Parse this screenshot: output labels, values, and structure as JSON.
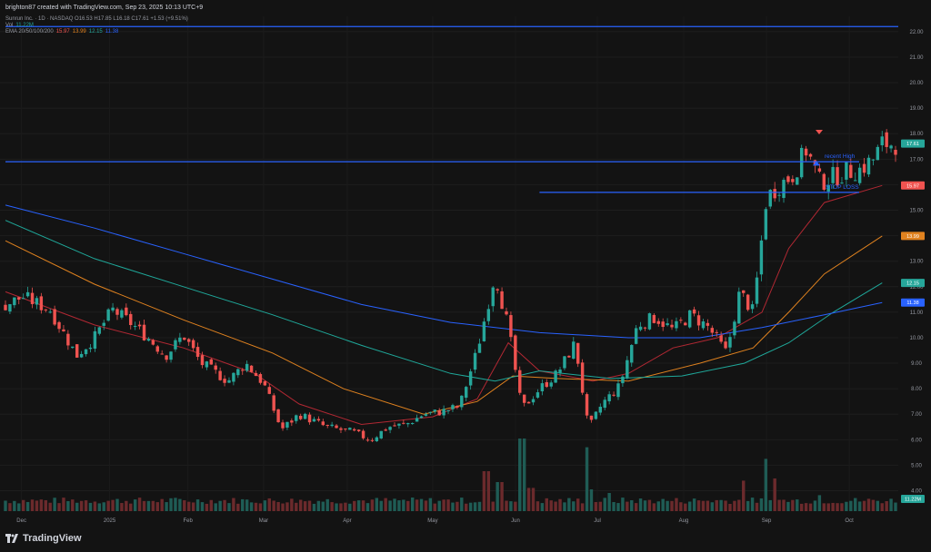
{
  "header": {
    "credit": "brighton87 created with TradingView.com, Sep 23, 2025 10:13 UTC+9"
  },
  "legend": {
    "symbol_line": "Sunrun Inc. · 1D · NASDAQ  O16.53  H17.85  L16.18  C17.61  +1.53 (+9.51%)",
    "vol_label": "Vol",
    "vol_value": "11.22M",
    "ema_label": "EMA 20/50/100/200",
    "ema_values": [
      "15.97",
      "13.99",
      "12.15",
      "11.38"
    ]
  },
  "annotations": {
    "recent_high": "recent High",
    "stop_loss": "STOP LOSS"
  },
  "footer": {
    "brand": "TradingView"
  },
  "colors": {
    "up": "#26a69a",
    "down": "#ef5350",
    "ema20": "#b22833",
    "ema50": "#e0821f",
    "ema100": "#1fa89a",
    "ema200": "#2962ff",
    "hline": "#2962ff"
  },
  "chart_data": {
    "type": "candlestick",
    "x_tick_labels": [
      "Dec",
      "2025",
      "Feb",
      "Mar",
      "Apr",
      "May",
      "Jun",
      "Jul",
      "Aug",
      "Sep",
      "Oct"
    ],
    "y_tick_labels": [
      "4.00",
      "5.00",
      "6.00",
      "7.00",
      "8.00",
      "9.00",
      "10.00",
      "11.00",
      "12.00",
      "13.00",
      "14.00",
      "15.00",
      "16.00",
      "17.00",
      "18.00",
      "19.00",
      "20.00",
      "21.00",
      "22.00"
    ],
    "ylim": [
      3.2,
      22.6
    ],
    "price_labels": [
      {
        "value": 17.61,
        "text": "17.61",
        "color": "#26a69a"
      },
      {
        "value": 15.97,
        "text": "15.97",
        "color": "#ef5350"
      },
      {
        "value": 13.99,
        "text": "13.99",
        "color": "#e0821f"
      },
      {
        "value": 12.15,
        "text": "12.15",
        "color": "#26a69a"
      },
      {
        "value": 11.38,
        "text": "11.38",
        "color": "#2962ff"
      }
    ],
    "volume_label": "11.22M",
    "horizontal_levels": [
      {
        "value": 22.2,
        "from": 0,
        "to": 1
      },
      {
        "value": 16.9,
        "from": 0,
        "to": 1
      },
      {
        "value": 15.7,
        "from": 0.6,
        "to": 1
      }
    ],
    "price_knots": [
      {
        "x": 0.0,
        "y": 11.3
      },
      {
        "x": 0.02,
        "y": 11.6
      },
      {
        "x": 0.05,
        "y": 11.1
      },
      {
        "x": 0.08,
        "y": 9.3
      },
      {
        "x": 0.1,
        "y": 10.0
      },
      {
        "x": 0.12,
        "y": 11.1
      },
      {
        "x": 0.14,
        "y": 10.6
      },
      {
        "x": 0.16,
        "y": 10.0
      },
      {
        "x": 0.18,
        "y": 9.3
      },
      {
        "x": 0.2,
        "y": 10.1
      },
      {
        "x": 0.22,
        "y": 9.0
      },
      {
        "x": 0.25,
        "y": 8.3
      },
      {
        "x": 0.27,
        "y": 9.0
      },
      {
        "x": 0.29,
        "y": 8.2
      },
      {
        "x": 0.31,
        "y": 6.4
      },
      {
        "x": 0.33,
        "y": 7.0
      },
      {
        "x": 0.36,
        "y": 6.5
      },
      {
        "x": 0.39,
        "y": 6.3
      },
      {
        "x": 0.41,
        "y": 6.0
      },
      {
        "x": 0.43,
        "y": 6.5
      },
      {
        "x": 0.45,
        "y": 6.6
      },
      {
        "x": 0.47,
        "y": 7.0
      },
      {
        "x": 0.49,
        "y": 7.1
      },
      {
        "x": 0.51,
        "y": 7.3
      },
      {
        "x": 0.53,
        "y": 9.5
      },
      {
        "x": 0.55,
        "y": 12.5
      },
      {
        "x": 0.565,
        "y": 10.4
      },
      {
        "x": 0.58,
        "y": 7.2
      },
      {
        "x": 0.6,
        "y": 8.0
      },
      {
        "x": 0.62,
        "y": 8.6
      },
      {
        "x": 0.64,
        "y": 9.8
      },
      {
        "x": 0.655,
        "y": 6.4
      },
      {
        "x": 0.67,
        "y": 7.4
      },
      {
        "x": 0.69,
        "y": 8.1
      },
      {
        "x": 0.71,
        "y": 10.5
      },
      {
        "x": 0.73,
        "y": 10.8
      },
      {
        "x": 0.75,
        "y": 10.3
      },
      {
        "x": 0.77,
        "y": 10.9
      },
      {
        "x": 0.79,
        "y": 10.4
      },
      {
        "x": 0.81,
        "y": 9.4
      },
      {
        "x": 0.825,
        "y": 11.8
      },
      {
        "x": 0.84,
        "y": 11.0
      },
      {
        "x": 0.855,
        "y": 15.5
      },
      {
        "x": 0.87,
        "y": 16.0
      },
      {
        "x": 0.885,
        "y": 16.4
      },
      {
        "x": 0.9,
        "y": 17.4
      },
      {
        "x": 0.915,
        "y": 16.1
      },
      {
        "x": 0.93,
        "y": 16.3
      },
      {
        "x": 0.945,
        "y": 16.5
      },
      {
        "x": 0.96,
        "y": 16.6
      },
      {
        "x": 0.975,
        "y": 17.0
      },
      {
        "x": 0.985,
        "y": 17.6
      }
    ],
    "ema_knots": {
      "ema20": [
        {
          "x": 0.0,
          "y": 11.8
        },
        {
          "x": 0.1,
          "y": 10.5
        },
        {
          "x": 0.2,
          "y": 9.6
        },
        {
          "x": 0.28,
          "y": 8.6
        },
        {
          "x": 0.33,
          "y": 7.4
        },
        {
          "x": 0.4,
          "y": 6.6
        },
        {
          "x": 0.48,
          "y": 6.9
        },
        {
          "x": 0.53,
          "y": 7.6
        },
        {
          "x": 0.565,
          "y": 9.8
        },
        {
          "x": 0.6,
          "y": 8.7
        },
        {
          "x": 0.66,
          "y": 8.3
        },
        {
          "x": 0.7,
          "y": 8.6
        },
        {
          "x": 0.75,
          "y": 9.6
        },
        {
          "x": 0.8,
          "y": 10.0
        },
        {
          "x": 0.85,
          "y": 11.0
        },
        {
          "x": 0.88,
          "y": 13.5
        },
        {
          "x": 0.92,
          "y": 15.3
        },
        {
          "x": 0.985,
          "y": 15.97
        }
      ],
      "ema50": [
        {
          "x": 0.0,
          "y": 13.8
        },
        {
          "x": 0.1,
          "y": 12.1
        },
        {
          "x": 0.2,
          "y": 10.7
        },
        {
          "x": 0.3,
          "y": 9.4
        },
        {
          "x": 0.38,
          "y": 8.0
        },
        {
          "x": 0.47,
          "y": 7.0
        },
        {
          "x": 0.53,
          "y": 7.5
        },
        {
          "x": 0.57,
          "y": 8.5
        },
        {
          "x": 0.62,
          "y": 8.4
        },
        {
          "x": 0.7,
          "y": 8.3
        },
        {
          "x": 0.78,
          "y": 9.0
        },
        {
          "x": 0.84,
          "y": 9.6
        },
        {
          "x": 0.88,
          "y": 11.0
        },
        {
          "x": 0.92,
          "y": 12.5
        },
        {
          "x": 0.985,
          "y": 13.99
        }
      ],
      "ema100": [
        {
          "x": 0.0,
          "y": 14.6
        },
        {
          "x": 0.1,
          "y": 13.1
        },
        {
          "x": 0.2,
          "y": 12.0
        },
        {
          "x": 0.3,
          "y": 10.9
        },
        {
          "x": 0.4,
          "y": 9.7
        },
        {
          "x": 0.5,
          "y": 8.6
        },
        {
          "x": 0.55,
          "y": 8.3
        },
        {
          "x": 0.6,
          "y": 8.7
        },
        {
          "x": 0.68,
          "y": 8.4
        },
        {
          "x": 0.76,
          "y": 8.5
        },
        {
          "x": 0.83,
          "y": 9.0
        },
        {
          "x": 0.88,
          "y": 9.8
        },
        {
          "x": 0.93,
          "y": 11.0
        },
        {
          "x": 0.985,
          "y": 12.15
        }
      ],
      "ema200": [
        {
          "x": 0.0,
          "y": 15.2
        },
        {
          "x": 0.1,
          "y": 14.3
        },
        {
          "x": 0.2,
          "y": 13.3
        },
        {
          "x": 0.3,
          "y": 12.3
        },
        {
          "x": 0.4,
          "y": 11.3
        },
        {
          "x": 0.5,
          "y": 10.6
        },
        {
          "x": 0.6,
          "y": 10.2
        },
        {
          "x": 0.7,
          "y": 10.0
        },
        {
          "x": 0.78,
          "y": 10.0
        },
        {
          "x": 0.85,
          "y": 10.4
        },
        {
          "x": 0.92,
          "y": 10.9
        },
        {
          "x": 0.985,
          "y": 11.38
        }
      ]
    },
    "volume_spikes": [
      {
        "x": 0.54,
        "v": 0.55
      },
      {
        "x": 0.555,
        "v": 0.4
      },
      {
        "x": 0.58,
        "v": 1.0
      },
      {
        "x": 0.59,
        "v": 0.32
      },
      {
        "x": 0.655,
        "v": 0.88
      },
      {
        "x": 0.66,
        "v": 0.3
      },
      {
        "x": 0.68,
        "v": 0.25
      },
      {
        "x": 0.83,
        "v": 0.42
      },
      {
        "x": 0.855,
        "v": 0.72
      },
      {
        "x": 0.865,
        "v": 0.45
      },
      {
        "x": 0.915,
        "v": 0.22
      }
    ]
  }
}
